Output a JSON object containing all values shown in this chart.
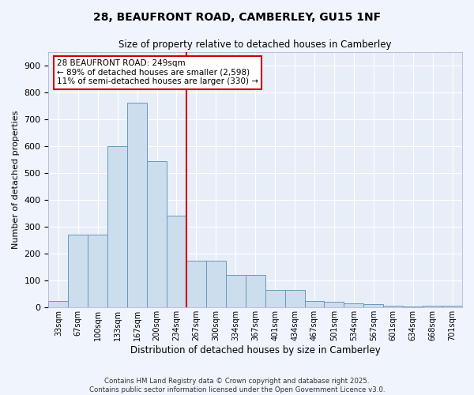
{
  "title": "28, BEAUFRONT ROAD, CAMBERLEY, GU15 1NF",
  "subtitle": "Size of property relative to detached houses in Camberley",
  "xlabel": "Distribution of detached houses by size in Camberley",
  "ylabel": "Number of detached properties",
  "bar_color": "#ccdded",
  "bar_edge_color": "#6699bb",
  "background_color": "#e8eef8",
  "grid_color": "#ffffff",
  "bins": [
    "33sqm",
    "67sqm",
    "100sqm",
    "133sqm",
    "167sqm",
    "200sqm",
    "234sqm",
    "267sqm",
    "300sqm",
    "334sqm",
    "367sqm",
    "401sqm",
    "434sqm",
    "467sqm",
    "501sqm",
    "534sqm",
    "567sqm",
    "601sqm",
    "634sqm",
    "668sqm",
    "701sqm"
  ],
  "values": [
    25,
    270,
    270,
    600,
    760,
    545,
    340,
    175,
    175,
    120,
    120,
    65,
    65,
    25,
    20,
    15,
    12,
    8,
    5,
    8,
    8
  ],
  "vline_bin_index": 7,
  "annotation_title": "28 BEAUFRONT ROAD: 249sqm",
  "annotation_line1": "← 89% of detached houses are smaller (2,598)",
  "annotation_line2": "11% of semi-detached houses are larger (330) →",
  "vline_color": "#cc0000",
  "annotation_box_color": "#cc0000",
  "ylim": [
    0,
    950
  ],
  "yticks": [
    0,
    100,
    200,
    300,
    400,
    500,
    600,
    700,
    800,
    900
  ],
  "footer1": "Contains HM Land Registry data © Crown copyright and database right 2025.",
  "footer2": "Contains public sector information licensed under the Open Government Licence v3.0."
}
